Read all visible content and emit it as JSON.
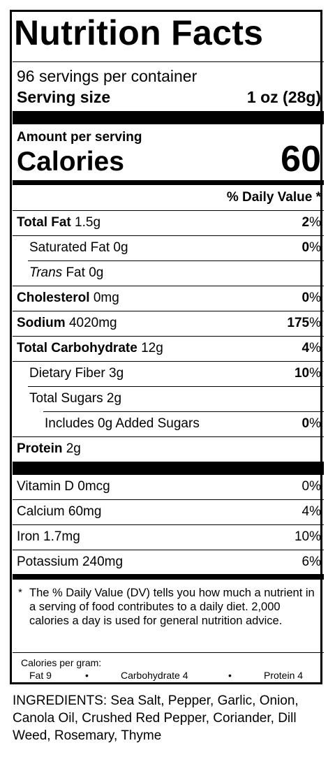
{
  "label": {
    "title": "Nutrition Facts",
    "servings_per_container": "96 servings per container",
    "serving_size_label": "Serving size",
    "serving_size_value": "1 oz (28g)",
    "amount_per_serving": "Amount per serving",
    "calories_label": "Calories",
    "calories_value": "60",
    "daily_value_header": "% Daily Value *",
    "nutrients": [
      {
        "name": "Total Fat",
        "amount": "1.5g",
        "dv_num": "2",
        "dv_pct": "%"
      },
      {
        "name": "Saturated Fat",
        "amount": "0g",
        "dv_num": "0",
        "dv_pct": "%"
      },
      {
        "name_italic": "Trans",
        "name": "Fat",
        "amount": "0g"
      },
      {
        "name": "Cholesterol",
        "amount": "0mg",
        "dv_num": "0",
        "dv_pct": "%"
      },
      {
        "name": "Sodium",
        "amount": "4020mg",
        "dv_num": "175",
        "dv_pct": "%"
      },
      {
        "name": "Total Carbohydrate",
        "amount": "12g",
        "dv_num": "4",
        "dv_pct": "%"
      },
      {
        "name": "Dietary Fiber",
        "amount": "3g",
        "dv_num": "10",
        "dv_pct": "%"
      },
      {
        "name": "Total Sugars",
        "amount": "2g"
      },
      {
        "name": "Includes 0g Added Sugars",
        "dv_num": "0",
        "dv_pct": "%"
      },
      {
        "name": "Protein",
        "amount": "2g"
      }
    ],
    "vitamins": [
      {
        "name": "Vitamin D 0mcg",
        "dv": "0%"
      },
      {
        "name": "Calcium 60mg",
        "dv": "4%"
      },
      {
        "name": "Iron 1.7mg",
        "dv": "10%"
      },
      {
        "name": "Potassium 240mg",
        "dv": "6%"
      }
    ],
    "footnote_star": "*",
    "footnote": "The % Daily Value (DV) tells you how much a nutrient in a serving of food contributes to a daily diet. 2,000 calories a day is used for general nutrition advice.",
    "calories_per_gram_label": "Calories per gram:",
    "calories_per_gram": {
      "fat": "Fat 9",
      "carbohydrate": "Carbohydrate 4",
      "protein": "Protein 4",
      "separator": "•"
    }
  },
  "ingredients": "INGREDIENTS: Sea Salt, Pepper, Garlic, Onion, Canola Oil, Crushed Red Pepper, Coriander, Dill Weed, Rosemary, Thyme"
}
